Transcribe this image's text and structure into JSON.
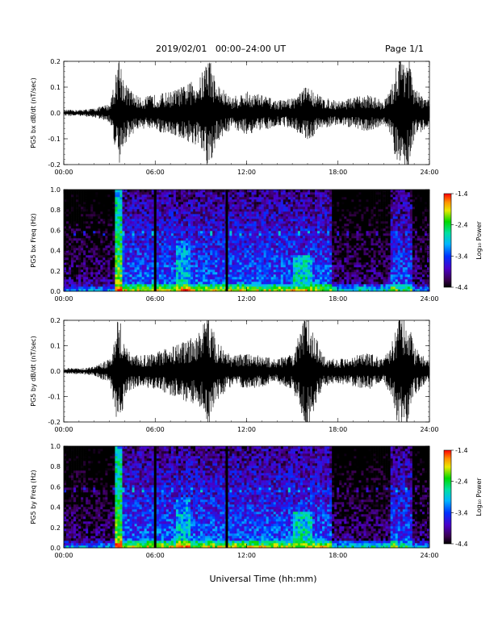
{
  "header": {
    "title": "2019/02/01   00:00–24:00 UT",
    "page": "Page 1/1"
  },
  "x_axis_title": "Universal Time (hh:mm)",
  "chart_data": [
    {
      "type": "line",
      "ylabel": "PG5 bx dB/dt (nT/sec)",
      "x": [
        "00:00",
        "06:00",
        "12:00",
        "18:00",
        "24:00"
      ],
      "xlim": [
        "00:00",
        "24:00"
      ],
      "ylim": [
        -0.2,
        0.2
      ],
      "yticks": [
        "-0.2",
        "-0.1",
        "0.0",
        "0.1",
        "0.2"
      ],
      "activity_envelope": {
        "hours": [
          0,
          1,
          2,
          3,
          3.4,
          3.6,
          4,
          4.5,
          5,
          6,
          7,
          8,
          9,
          9.5,
          10,
          11,
          12,
          13,
          14,
          15,
          16,
          17,
          18,
          19,
          20,
          21,
          21.5,
          22,
          22.3,
          22.6,
          23,
          24
        ],
        "amplitude": [
          0.01,
          0.01,
          0.015,
          0.03,
          0.12,
          0.2,
          0.1,
          0.07,
          0.05,
          0.06,
          0.07,
          0.09,
          0.12,
          0.2,
          0.1,
          0.05,
          0.07,
          0.06,
          0.04,
          0.05,
          0.09,
          0.05,
          0.04,
          0.05,
          0.06,
          0.04,
          0.08,
          0.2,
          0.2,
          0.2,
          0.08,
          0.04
        ]
      }
    },
    {
      "type": "heatmap",
      "ylabel": "PG5 bx Freq (Hz)",
      "x": [
        "00:00",
        "06:00",
        "12:00",
        "18:00",
        "24:00"
      ],
      "xlim": [
        "00:00",
        "24:00"
      ],
      "ylim": [
        0.0,
        1.0
      ],
      "yticks": [
        "0.0",
        "0.2",
        "0.4",
        "0.6",
        "0.8",
        "1.0"
      ],
      "colorbar": {
        "label": "Log₁₀ Power",
        "ticks": [
          "-1.4",
          "-2.4",
          "-3.4",
          "-4.4"
        ],
        "range": [
          -4.4,
          -1.4
        ]
      },
      "data_gaps_hours": [
        6.0,
        10.7
      ]
    },
    {
      "type": "line",
      "ylabel": "PG5 by dB/dt (nT/sec)",
      "x": [
        "00:00",
        "06:00",
        "12:00",
        "18:00",
        "24:00"
      ],
      "xlim": [
        "00:00",
        "24:00"
      ],
      "ylim": [
        -0.2,
        0.2
      ],
      "yticks": [
        "-0.2",
        "-0.1",
        "0.0",
        "0.1",
        "0.2"
      ],
      "activity_envelope": {
        "hours": [
          0,
          1,
          2,
          3,
          3.4,
          3.6,
          4,
          4.5,
          5,
          6,
          7,
          8,
          9,
          9.5,
          10,
          11,
          12,
          13,
          14,
          15,
          16,
          17,
          18,
          19,
          20,
          21,
          21.5,
          22,
          22.3,
          22.6,
          23,
          24
        ],
        "amplitude": [
          0.01,
          0.01,
          0.015,
          0.04,
          0.15,
          0.2,
          0.09,
          0.06,
          0.05,
          0.06,
          0.08,
          0.1,
          0.13,
          0.2,
          0.1,
          0.05,
          0.06,
          0.05,
          0.04,
          0.06,
          0.2,
          0.05,
          0.04,
          0.05,
          0.06,
          0.04,
          0.09,
          0.2,
          0.2,
          0.2,
          0.08,
          0.03
        ]
      }
    },
    {
      "type": "heatmap",
      "ylabel": "PG5 by Freq (Hz)",
      "x": [
        "00:00",
        "06:00",
        "12:00",
        "18:00",
        "24:00"
      ],
      "xlim": [
        "00:00",
        "24:00"
      ],
      "ylim": [
        0.0,
        1.0
      ],
      "yticks": [
        "0.0",
        "0.2",
        "0.4",
        "0.6",
        "0.8",
        "1.0"
      ],
      "colorbar": {
        "label": "Log₁₀ Power",
        "ticks": [
          "-1.4",
          "-2.4",
          "-3.4",
          "-4.4"
        ],
        "range": [
          -4.4,
          -1.4
        ]
      },
      "data_gaps_hours": [
        6.0,
        10.7
      ]
    }
  ]
}
